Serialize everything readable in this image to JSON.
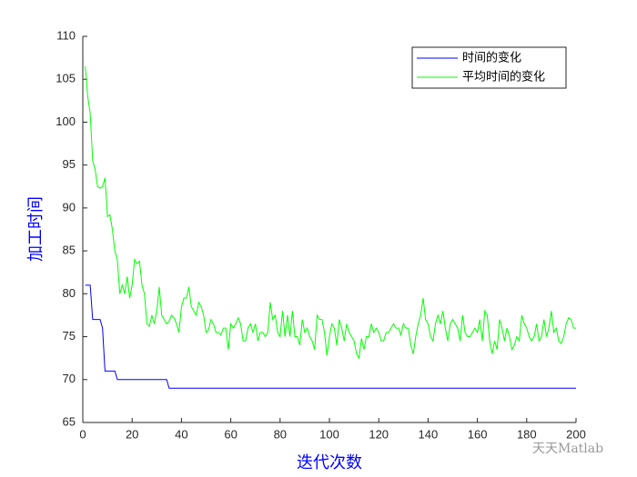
{
  "chart_data": {
    "type": "line",
    "xlabel": "迭代次数",
    "ylabel": "加工时间",
    "label_color": "#0000ff",
    "watermark": "天天Matlab",
    "x": [
      1,
      2,
      3,
      4,
      5,
      6,
      7,
      8,
      9,
      10,
      11,
      12,
      13,
      14,
      15,
      16,
      17,
      18,
      19,
      20,
      21,
      22,
      23,
      24,
      25,
      26,
      27,
      28,
      29,
      30,
      31,
      32,
      33,
      34,
      35,
      36,
      37,
      38,
      39,
      40,
      41,
      42,
      43,
      44,
      45,
      46,
      47,
      48,
      49,
      50,
      51,
      52,
      53,
      54,
      55,
      56,
      57,
      58,
      59,
      60,
      61,
      62,
      63,
      64,
      65,
      66,
      67,
      68,
      69,
      70,
      71,
      72,
      73,
      74,
      75,
      76,
      77,
      78,
      79,
      80,
      81,
      82,
      83,
      84,
      85,
      86,
      87,
      88,
      89,
      90,
      91,
      92,
      93,
      94,
      95,
      96,
      97,
      98,
      99,
      100,
      101,
      102,
      103,
      104,
      105,
      106,
      107,
      108,
      109,
      110,
      111,
      112,
      113,
      114,
      115,
      116,
      117,
      118,
      119,
      120,
      121,
      122,
      123,
      124,
      125,
      126,
      127,
      128,
      129,
      130,
      131,
      132,
      133,
      134,
      135,
      136,
      137,
      138,
      139,
      140,
      141,
      142,
      143,
      144,
      145,
      146,
      147,
      148,
      149,
      150,
      151,
      152,
      153,
      154,
      155,
      156,
      157,
      158,
      159,
      160,
      161,
      162,
      163,
      164,
      165,
      166,
      167,
      168,
      169,
      170,
      171,
      172,
      173,
      174,
      175,
      176,
      177,
      178,
      179,
      180,
      181,
      182,
      183,
      184,
      185,
      186,
      187,
      188,
      189,
      190,
      191,
      192,
      193,
      194,
      195,
      196,
      197,
      198,
      199,
      200
    ],
    "series": [
      {
        "name": "时间的变化",
        "color": "#0000ff",
        "values": [
          81,
          81,
          81,
          77,
          77,
          77,
          77,
          76,
          71,
          71,
          71,
          71,
          71,
          70,
          70,
          70,
          70,
          70,
          70,
          70,
          70,
          70,
          70,
          70,
          70,
          70,
          70,
          70,
          70,
          70,
          70,
          70,
          70,
          70,
          69,
          69,
          69,
          69,
          69,
          69,
          69,
          69,
          69,
          69,
          69,
          69,
          69,
          69,
          69,
          69,
          69,
          69,
          69,
          69,
          69,
          69,
          69,
          69,
          69,
          69,
          69,
          69,
          69,
          69,
          69,
          69,
          69,
          69,
          69,
          69,
          69,
          69,
          69,
          69,
          69,
          69,
          69,
          69,
          69,
          69,
          69,
          69,
          69,
          69,
          69,
          69,
          69,
          69,
          69,
          69,
          69,
          69,
          69,
          69,
          69,
          69,
          69,
          69,
          69,
          69,
          69,
          69,
          69,
          69,
          69,
          69,
          69,
          69,
          69,
          69,
          69,
          69,
          69,
          69,
          69,
          69,
          69,
          69,
          69,
          69,
          69,
          69,
          69,
          69,
          69,
          69,
          69,
          69,
          69,
          69,
          69,
          69,
          69,
          69,
          69,
          69,
          69,
          69,
          69,
          69,
          69,
          69,
          69,
          69,
          69,
          69,
          69,
          69,
          69,
          69,
          69,
          69,
          69,
          69,
          69,
          69,
          69,
          69,
          69,
          69,
          69,
          69,
          69,
          69,
          69,
          69,
          69,
          69,
          69,
          69,
          69,
          69,
          69,
          69,
          69,
          69,
          69,
          69,
          69,
          69,
          69,
          69,
          69,
          69,
          69,
          69,
          69,
          69,
          69,
          69,
          69,
          69,
          69,
          69,
          69,
          69,
          69,
          69,
          69,
          69
        ]
      },
      {
        "name": "平均时间的变化",
        "color": "#00ff00",
        "values": [
          106.5,
          103,
          101,
          95.5,
          94.5,
          92.5,
          92.3,
          92.5,
          93.5,
          89,
          89.2,
          87.5,
          85,
          84,
          80,
          81,
          80,
          82,
          79.5,
          81,
          84,
          83.5,
          83.8,
          81,
          80,
          76.5,
          76.2,
          77.5,
          76.5,
          78,
          80.8,
          77.5,
          77,
          76.5,
          76.8,
          77.5,
          77.2,
          76.5,
          75.5,
          78.5,
          79.5,
          79.5,
          80.8,
          78.5,
          78,
          77.5,
          79,
          78.5,
          77.5,
          75.5,
          75.8,
          77,
          76.5,
          75.5,
          75.5,
          75.2,
          76,
          76,
          73.5,
          76.5,
          76,
          76.5,
          77.2,
          76.5,
          74.5,
          74.5,
          76,
          76.5,
          75.5,
          76.5,
          74.5,
          75.5,
          75.5,
          75,
          75.5,
          79,
          77,
          77.5,
          75.5,
          75,
          78,
          75,
          77.5,
          75,
          78,
          75,
          75,
          74,
          77,
          75.5,
          76,
          75,
          74.5,
          73.5,
          77.5,
          77,
          77,
          75.5,
          72.8,
          75,
          76.5,
          76,
          74,
          77,
          76,
          74.5,
          76.5,
          75.5,
          75,
          74.5,
          73,
          72.5,
          74.8,
          73.5,
          75,
          75,
          76.5,
          75.5,
          76,
          75.5,
          74.5,
          74.5,
          75.5,
          75.5,
          76,
          76.5,
          76,
          76,
          75.2,
          76.5,
          76,
          76,
          74,
          73,
          75,
          76.5,
          77.5,
          79.5,
          77,
          76.5,
          75,
          74.5,
          76.5,
          77.5,
          76.5,
          78,
          76,
          74.5,
          76.5,
          77,
          76.5,
          76,
          74.5,
          77.5,
          75.5,
          75,
          75,
          75.5,
          76,
          75.5,
          77,
          74.5,
          78,
          77.5,
          74.5,
          73,
          74.5,
          73.5,
          77,
          76,
          74.5,
          76,
          75,
          73.5,
          74,
          75,
          74.5,
          77.5,
          76.5,
          76,
          75,
          74.5,
          75,
          76.5,
          74.5,
          75,
          77,
          75,
          76,
          78,
          75.5,
          76,
          74.5,
          74.2,
          75,
          76.5,
          77.2,
          77,
          76,
          76
        ]
      }
    ],
    "xlim": [
      0,
      200
    ],
    "xticks": [
      0,
      20,
      40,
      60,
      80,
      100,
      120,
      140,
      160,
      180,
      200
    ],
    "ylim": [
      65,
      110
    ],
    "yticks": [
      65,
      70,
      75,
      80,
      85,
      90,
      95,
      100,
      105,
      110
    ],
    "legend": "upper right"
  }
}
